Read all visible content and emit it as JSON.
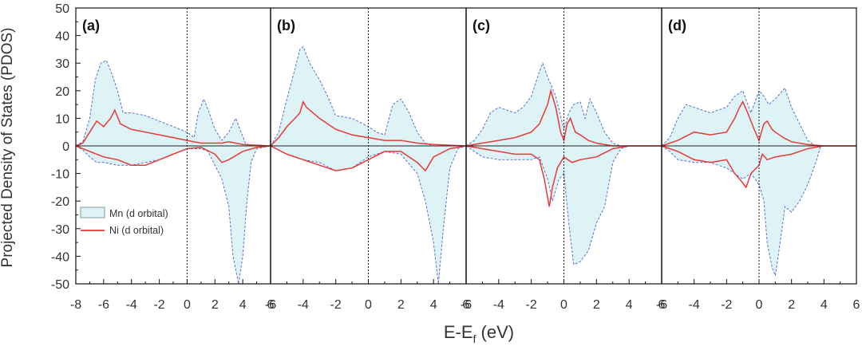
{
  "chart_data": {
    "type": "area",
    "ylabel": "Projected Density of States (PDOS)",
    "xlabel": {
      "main": "E-E",
      "sub": "f",
      "unit": " (eV)"
    },
    "ylim": [
      -50,
      50
    ],
    "yticks": [
      -50,
      -40,
      -30,
      -20,
      -10,
      0,
      10,
      20,
      30,
      40,
      50
    ],
    "x_ticks_by_panel": [
      [
        "-8",
        "-6",
        "-4",
        "-2",
        "0",
        "2",
        "4",
        "6"
      ],
      [
        "-6",
        "-4",
        "-2",
        "0",
        "2",
        "4",
        "6"
      ],
      [
        "-6",
        "-4",
        "-2",
        "0",
        "2",
        "4",
        "6"
      ],
      [
        "-6",
        "-4",
        "-2",
        "0",
        "2",
        "4",
        "6"
      ]
    ],
    "legend": {
      "location": "lower-left of panel (a)",
      "entries": [
        {
          "label": "Mn (d orbital)",
          "style": "filled area, dashed outline"
        },
        {
          "label": "Ni (d orbital)",
          "style": "solid line"
        }
      ]
    },
    "colors": {
      "mn_fill": "#def3f6",
      "mn_edge": "#5b6fd0",
      "ni_line": "#e63a36",
      "axis": "#111111"
    },
    "panels": [
      {
        "label": "(a)",
        "xlim": [
          -8,
          6
        ],
        "mn_up": [
          [
            -8,
            0
          ],
          [
            -7.5,
            1.5
          ],
          [
            -7,
            10
          ],
          [
            -6.6,
            24
          ],
          [
            -6.2,
            30
          ],
          [
            -5.8,
            31
          ],
          [
            -5.4,
            26
          ],
          [
            -5,
            20
          ],
          [
            -4.6,
            12
          ],
          [
            -4,
            12
          ],
          [
            -3,
            11
          ],
          [
            -2,
            9
          ],
          [
            -1,
            7
          ],
          [
            -0.5,
            6
          ],
          [
            0,
            5
          ],
          [
            0.5,
            3
          ],
          [
            0.8,
            12
          ],
          [
            1.2,
            17
          ],
          [
            1.6,
            12
          ],
          [
            2,
            6
          ],
          [
            2.5,
            2
          ],
          [
            3,
            5
          ],
          [
            3.5,
            10
          ],
          [
            3.8,
            6
          ],
          [
            4.2,
            1
          ],
          [
            4.6,
            0
          ],
          [
            6,
            0
          ]
        ],
        "mn_down": [
          [
            -8,
            0
          ],
          [
            -7.5,
            -1.5
          ],
          [
            -7,
            -4
          ],
          [
            -6.5,
            -6
          ],
          [
            -6,
            -6
          ],
          [
            -5,
            -7
          ],
          [
            -4,
            -7
          ],
          [
            -3,
            -6
          ],
          [
            -2,
            -5
          ],
          [
            -1,
            -3
          ],
          [
            0,
            -1
          ],
          [
            1,
            -1
          ],
          [
            1.5,
            -2
          ],
          [
            2,
            -7
          ],
          [
            2.5,
            -12
          ],
          [
            3,
            -22
          ],
          [
            3.3,
            -40
          ],
          [
            3.7,
            -50
          ],
          [
            4,
            -40
          ],
          [
            4.3,
            -20
          ],
          [
            4.6,
            -6
          ],
          [
            5,
            -1
          ],
          [
            6,
            0
          ]
        ],
        "ni_up": [
          [
            -8,
            0
          ],
          [
            -7.5,
            1
          ],
          [
            -7,
            5
          ],
          [
            -6.5,
            9
          ],
          [
            -6,
            7
          ],
          [
            -5.5,
            10
          ],
          [
            -5.2,
            13
          ],
          [
            -4.8,
            8
          ],
          [
            -4,
            6
          ],
          [
            -3,
            5
          ],
          [
            -2,
            4
          ],
          [
            -1,
            3
          ],
          [
            0,
            2
          ],
          [
            1,
            1
          ],
          [
            2,
            1
          ],
          [
            2.5,
            1
          ],
          [
            3,
            1.5
          ],
          [
            4,
            0.5
          ],
          [
            6,
            0
          ]
        ],
        "ni_down": [
          [
            -8,
            0
          ],
          [
            -7,
            -2
          ],
          [
            -6,
            -4
          ],
          [
            -5,
            -5
          ],
          [
            -4,
            -7
          ],
          [
            -3,
            -7
          ],
          [
            -2,
            -5
          ],
          [
            -1,
            -3
          ],
          [
            0,
            -1
          ],
          [
            1,
            -0.5
          ],
          [
            2,
            -3
          ],
          [
            2.5,
            -6
          ],
          [
            3,
            -5
          ],
          [
            4,
            -2
          ],
          [
            5,
            -0.5
          ],
          [
            6,
            0
          ]
        ]
      },
      {
        "label": "(b)",
        "xlim": [
          -6,
          6
        ],
        "mn_up": [
          [
            -6,
            0
          ],
          [
            -5.5,
            5
          ],
          [
            -5,
            17
          ],
          [
            -4.5,
            28
          ],
          [
            -4.2,
            35
          ],
          [
            -4,
            36
          ],
          [
            -3.6,
            30
          ],
          [
            -3,
            24
          ],
          [
            -2.5,
            18
          ],
          [
            -2,
            11
          ],
          [
            -1,
            10
          ],
          [
            0,
            7
          ],
          [
            0.5,
            5
          ],
          [
            1,
            4
          ],
          [
            1.5,
            15
          ],
          [
            2,
            17
          ],
          [
            2.5,
            12
          ],
          [
            3,
            5
          ],
          [
            3.5,
            1
          ],
          [
            4,
            0
          ],
          [
            6,
            0
          ]
        ],
        "mn_down": [
          [
            -6,
            0
          ],
          [
            -5,
            -3
          ],
          [
            -4,
            -5
          ],
          [
            -3,
            -6
          ],
          [
            -2,
            -9
          ],
          [
            -1,
            -8
          ],
          [
            0,
            -4
          ],
          [
            1,
            -2
          ],
          [
            2,
            -3
          ],
          [
            3,
            -10
          ],
          [
            3.5,
            -20
          ],
          [
            4,
            -35
          ],
          [
            4.3,
            -50
          ],
          [
            4.6,
            -30
          ],
          [
            5,
            -8
          ],
          [
            5.5,
            -1
          ],
          [
            6,
            0
          ]
        ],
        "ni_up": [
          [
            -6,
            0
          ],
          [
            -5.5,
            3
          ],
          [
            -5,
            7
          ],
          [
            -4.5,
            10
          ],
          [
            -4.2,
            12
          ],
          [
            -4,
            16
          ],
          [
            -3.8,
            14
          ],
          [
            -3,
            10
          ],
          [
            -2,
            6
          ],
          [
            -1,
            4
          ],
          [
            0,
            3
          ],
          [
            1,
            2
          ],
          [
            2,
            2
          ],
          [
            3,
            1
          ],
          [
            4,
            0.5
          ],
          [
            6,
            0
          ]
        ],
        "ni_down": [
          [
            -6,
            0
          ],
          [
            -5,
            -3
          ],
          [
            -4,
            -5
          ],
          [
            -3,
            -7
          ],
          [
            -2,
            -9
          ],
          [
            -1,
            -8
          ],
          [
            0,
            -5
          ],
          [
            1,
            -2
          ],
          [
            2,
            -2
          ],
          [
            3,
            -6
          ],
          [
            3.5,
            -9
          ],
          [
            4,
            -4
          ],
          [
            5,
            -1
          ],
          [
            6,
            0
          ]
        ]
      },
      {
        "label": "(c)",
        "xlim": [
          -6,
          6
        ],
        "mn_up": [
          [
            -6,
            0
          ],
          [
            -5.5,
            2
          ],
          [
            -5,
            6
          ],
          [
            -4.5,
            12
          ],
          [
            -4,
            14
          ],
          [
            -3,
            12
          ],
          [
            -2.5,
            14
          ],
          [
            -2,
            18
          ],
          [
            -1.5,
            27
          ],
          [
            -1.3,
            30
          ],
          [
            -1,
            25
          ],
          [
            -0.5,
            18
          ],
          [
            0,
            6
          ],
          [
            0.3,
            12
          ],
          [
            0.6,
            15
          ],
          [
            1,
            16
          ],
          [
            1.3,
            10
          ],
          [
            1.6,
            17
          ],
          [
            2,
            12
          ],
          [
            2.5,
            5
          ],
          [
            3,
            1
          ],
          [
            3.5,
            0
          ],
          [
            6,
            0
          ]
        ],
        "mn_down": [
          [
            -6,
            0
          ],
          [
            -5.5,
            -2
          ],
          [
            -5,
            -4
          ],
          [
            -4,
            -5
          ],
          [
            -3,
            -5
          ],
          [
            -2,
            -5
          ],
          [
            -1.5,
            -4
          ],
          [
            -1,
            -12
          ],
          [
            -0.7,
            -20
          ],
          [
            -0.3,
            -12
          ],
          [
            0,
            -10
          ],
          [
            0.3,
            -28
          ],
          [
            0.6,
            -43
          ],
          [
            1,
            -42
          ],
          [
            1.5,
            -38
          ],
          [
            2,
            -28
          ],
          [
            2.5,
            -22
          ],
          [
            3,
            -6
          ],
          [
            3.5,
            -1
          ],
          [
            4,
            0
          ],
          [
            6,
            0
          ]
        ],
        "ni_up": [
          [
            -6,
            0
          ],
          [
            -5,
            1
          ],
          [
            -4,
            2
          ],
          [
            -3,
            3
          ],
          [
            -2,
            5
          ],
          [
            -1.5,
            8
          ],
          [
            -1,
            15
          ],
          [
            -0.8,
            20
          ],
          [
            -0.5,
            14
          ],
          [
            -0.2,
            5
          ],
          [
            0,
            2
          ],
          [
            0.2,
            8
          ],
          [
            0.4,
            10
          ],
          [
            0.7,
            5
          ],
          [
            1,
            4
          ],
          [
            1.5,
            2
          ],
          [
            2,
            1
          ],
          [
            2.5,
            0.5
          ],
          [
            3,
            0
          ],
          [
            6,
            0
          ]
        ],
        "ni_down": [
          [
            -6,
            0
          ],
          [
            -5,
            -1
          ],
          [
            -4,
            -2
          ],
          [
            -3,
            -3
          ],
          [
            -2,
            -3
          ],
          [
            -1.5,
            -5
          ],
          [
            -1.2,
            -12
          ],
          [
            -0.9,
            -22
          ],
          [
            -0.7,
            -15
          ],
          [
            -0.4,
            -8
          ],
          [
            0,
            -4
          ],
          [
            0.5,
            -6
          ],
          [
            1,
            -5
          ],
          [
            2,
            -4
          ],
          [
            3,
            -1
          ],
          [
            4,
            0
          ],
          [
            6,
            0
          ]
        ]
      },
      {
        "label": "(d)",
        "xlim": [
          -6,
          6
        ],
        "mn_up": [
          [
            -6,
            0
          ],
          [
            -5.5,
            3
          ],
          [
            -5,
            10
          ],
          [
            -4.5,
            15
          ],
          [
            -4,
            14
          ],
          [
            -3,
            12
          ],
          [
            -2,
            14
          ],
          [
            -1.5,
            18
          ],
          [
            -1,
            20
          ],
          [
            -0.5,
            12
          ],
          [
            0,
            20
          ],
          [
            0.3,
            18
          ],
          [
            0.6,
            15
          ],
          [
            1,
            17
          ],
          [
            1.3,
            19
          ],
          [
            1.6,
            21
          ],
          [
            2,
            14
          ],
          [
            2.5,
            8
          ],
          [
            3,
            2
          ],
          [
            3.5,
            0
          ],
          [
            6,
            0
          ]
        ],
        "mn_down": [
          [
            -6,
            0
          ],
          [
            -5.5,
            -2
          ],
          [
            -5,
            -5
          ],
          [
            -4,
            -6
          ],
          [
            -3,
            -6
          ],
          [
            -2,
            -8
          ],
          [
            -1.5,
            -10
          ],
          [
            -1,
            -12
          ],
          [
            -0.5,
            -10
          ],
          [
            0,
            -14
          ],
          [
            0.3,
            -20
          ],
          [
            0.5,
            -35
          ],
          [
            0.8,
            -44
          ],
          [
            1,
            -47
          ],
          [
            1.3,
            -35
          ],
          [
            1.6,
            -22
          ],
          [
            2,
            -24
          ],
          [
            2.5,
            -20
          ],
          [
            3,
            -14
          ],
          [
            3.5,
            -6
          ],
          [
            3.8,
            0
          ],
          [
            6,
            0
          ]
        ],
        "ni_up": [
          [
            -6,
            0
          ],
          [
            -5,
            2
          ],
          [
            -4,
            5
          ],
          [
            -3,
            4
          ],
          [
            -2,
            5
          ],
          [
            -1.5,
            10
          ],
          [
            -1.2,
            14
          ],
          [
            -1,
            16
          ],
          [
            -0.7,
            12
          ],
          [
            -0.3,
            6
          ],
          [
            0,
            2
          ],
          [
            0.3,
            8
          ],
          [
            0.5,
            9
          ],
          [
            0.8,
            6
          ],
          [
            1,
            5
          ],
          [
            1.5,
            3
          ],
          [
            2,
            1.5
          ],
          [
            3,
            0.5
          ],
          [
            4,
            0
          ],
          [
            6,
            0
          ]
        ],
        "ni_down": [
          [
            -6,
            0
          ],
          [
            -5,
            -2
          ],
          [
            -4,
            -5
          ],
          [
            -3,
            -6
          ],
          [
            -2,
            -5
          ],
          [
            -1.5,
            -10
          ],
          [
            -1.2,
            -12
          ],
          [
            -0.8,
            -15
          ],
          [
            -0.5,
            -10
          ],
          [
            0,
            -7
          ],
          [
            0.2,
            -3
          ],
          [
            0.5,
            -5
          ],
          [
            1,
            -4
          ],
          [
            2,
            -3
          ],
          [
            3,
            -1
          ],
          [
            4,
            0
          ],
          [
            6,
            0
          ]
        ]
      }
    ]
  }
}
